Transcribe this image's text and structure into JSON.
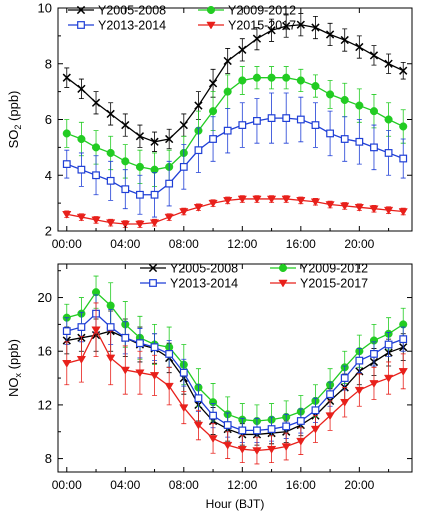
{
  "chart_data": [
    {
      "type": "line",
      "ylabel": "SO2 (ppb)",
      "ylabel_main": "SO",
      "ylabel_sub": "2",
      "ylabel_unit": " (ppb)",
      "xlabel": "",
      "ylim": [
        2,
        10
      ],
      "yticks": [
        2,
        4,
        6,
        8,
        10
      ],
      "xlim": [
        -0.6,
        23.6
      ],
      "xticks": [
        0,
        4,
        8,
        12,
        16,
        20
      ],
      "xtick_labels": [
        "00:00",
        "04:00",
        "08:00",
        "12:00",
        "16:00",
        "20:00"
      ],
      "legend_position": "top-left",
      "x": [
        0,
        1,
        2,
        3,
        4,
        5,
        6,
        7,
        8,
        9,
        10,
        11,
        12,
        13,
        14,
        15,
        16,
        17,
        18,
        19,
        20,
        21,
        22,
        23
      ],
      "series": [
        {
          "name": "Y2005-2008",
          "color": "#000000",
          "marker": "x",
          "values": [
            7.5,
            7.1,
            6.6,
            6.2,
            5.8,
            5.4,
            5.2,
            5.3,
            5.8,
            6.5,
            7.3,
            8.1,
            8.5,
            8.9,
            9.2,
            9.35,
            9.4,
            9.3,
            9.05,
            8.85,
            8.6,
            8.3,
            8.0,
            7.75
          ],
          "err": [
            0.35,
            0.35,
            0.4,
            0.4,
            0.4,
            0.4,
            0.35,
            0.35,
            0.4,
            0.5,
            0.5,
            0.45,
            0.4,
            0.4,
            0.4,
            0.4,
            0.4,
            0.4,
            0.4,
            0.4,
            0.4,
            0.35,
            0.35,
            0.3
          ]
        },
        {
          "name": "Y2009-2012",
          "color": "#22cc22",
          "marker": "circle",
          "values": [
            5.5,
            5.3,
            5.0,
            4.8,
            4.5,
            4.3,
            4.2,
            4.3,
            4.8,
            5.6,
            6.3,
            7.0,
            7.4,
            7.5,
            7.5,
            7.5,
            7.4,
            7.2,
            6.9,
            6.7,
            6.5,
            6.3,
            6.0,
            5.75
          ],
          "err": [
            0.5,
            0.6,
            0.6,
            0.6,
            0.6,
            0.6,
            0.6,
            0.6,
            0.6,
            0.7,
            0.7,
            0.6,
            0.5,
            0.4,
            0.4,
            0.4,
            0.4,
            0.4,
            0.5,
            0.6,
            0.6,
            0.6,
            0.6,
            0.6
          ]
        },
        {
          "name": "Y2013-2014",
          "color": "#1f3fd6",
          "marker": "square",
          "values": [
            4.4,
            4.2,
            4.0,
            3.8,
            3.5,
            3.3,
            3.3,
            3.7,
            4.3,
            4.9,
            5.3,
            5.6,
            5.8,
            5.95,
            6.05,
            6.05,
            6.0,
            5.8,
            5.5,
            5.3,
            5.2,
            5.0,
            4.8,
            4.6
          ],
          "err": [
            0.5,
            0.6,
            0.7,
            0.7,
            0.7,
            0.7,
            0.8,
            0.8,
            0.8,
            0.8,
            0.8,
            0.8,
            0.8,
            0.8,
            0.9,
            0.9,
            0.8,
            0.8,
            0.8,
            0.8,
            0.8,
            0.8,
            0.8,
            0.7
          ]
        },
        {
          "name": "Y2015-2017",
          "color": "#e8201b",
          "marker": "triangle-down",
          "values": [
            2.6,
            2.5,
            2.4,
            2.3,
            2.25,
            2.25,
            2.3,
            2.5,
            2.7,
            2.85,
            3.0,
            3.1,
            3.15,
            3.15,
            3.15,
            3.15,
            3.1,
            3.05,
            2.95,
            2.9,
            2.85,
            2.8,
            2.75,
            2.7
          ],
          "err": [
            0.12,
            0.12,
            0.12,
            0.12,
            0.12,
            0.12,
            0.12,
            0.12,
            0.12,
            0.12,
            0.12,
            0.12,
            0.12,
            0.12,
            0.12,
            0.12,
            0.12,
            0.12,
            0.12,
            0.12,
            0.12,
            0.12,
            0.12,
            0.12
          ]
        }
      ]
    },
    {
      "type": "line",
      "ylabel": "NOx (ppb)",
      "ylabel_main": "NO",
      "ylabel_sub": "x",
      "ylabel_unit": " (ppb)",
      "xlabel": "Hour (BJT)",
      "ylim": [
        7,
        22.5
      ],
      "yticks": [
        8,
        12,
        16,
        20
      ],
      "xlim": [
        -0.6,
        23.6
      ],
      "xticks": [
        0,
        4,
        8,
        12,
        16,
        20
      ],
      "xtick_labels": [
        "00:00",
        "04:00",
        "08:00",
        "12:00",
        "16:00",
        "20:00"
      ],
      "legend_position": "top-right",
      "x": [
        0,
        1,
        2,
        3,
        4,
        5,
        6,
        7,
        8,
        9,
        10,
        11,
        12,
        13,
        14,
        15,
        16,
        17,
        18,
        19,
        20,
        21,
        22,
        23
      ],
      "series": [
        {
          "name": "Y2005-2008",
          "color": "#000000",
          "marker": "x",
          "values": [
            16.8,
            17.0,
            17.2,
            17.5,
            17.0,
            16.5,
            16.2,
            15.5,
            14.0,
            12.0,
            10.8,
            10.2,
            9.8,
            9.8,
            9.9,
            10.0,
            10.5,
            11.2,
            12.3,
            13.3,
            14.5,
            15.2,
            15.9,
            16.3
          ],
          "err": [
            1.0,
            1.0,
            1.2,
            1.5,
            1.4,
            1.3,
            1.1,
            1.1,
            1.2,
            1.2,
            1.0,
            0.9,
            0.8,
            0.8,
            0.8,
            0.8,
            0.8,
            0.9,
            0.9,
            1.0,
            1.0,
            1.0,
            1.0,
            1.0
          ]
        },
        {
          "name": "Y2009-2012",
          "color": "#22cc22",
          "marker": "circle",
          "values": [
            18.5,
            18.8,
            20.4,
            19.4,
            18.0,
            17.0,
            16.5,
            16.3,
            15.0,
            13.3,
            12.2,
            11.3,
            10.9,
            10.8,
            10.9,
            11.1,
            11.5,
            12.3,
            13.5,
            14.8,
            16.0,
            16.8,
            17.3,
            18.0
          ],
          "err": [
            1.0,
            1.2,
            1.2,
            1.7,
            1.7,
            1.6,
            1.5,
            1.5,
            1.5,
            1.4,
            1.4,
            1.3,
            1.2,
            1.2,
            1.2,
            1.2,
            1.2,
            1.2,
            1.2,
            1.2,
            1.2,
            1.2,
            1.2,
            1.2
          ]
        },
        {
          "name": "Y2013-2014",
          "color": "#1f3fd6",
          "marker": "square",
          "values": [
            17.5,
            17.8,
            18.8,
            17.8,
            17.0,
            16.6,
            16.3,
            15.8,
            14.4,
            12.5,
            11.2,
            10.5,
            10.1,
            10.1,
            10.2,
            10.4,
            10.8,
            11.6,
            12.8,
            14.0,
            15.3,
            15.8,
            16.5,
            16.9
          ],
          "err": [
            1.0,
            1.1,
            1.4,
            1.3,
            1.2,
            1.1,
            1.0,
            1.0,
            1.0,
            1.0,
            0.9,
            0.9,
            0.9,
            0.9,
            0.9,
            0.9,
            0.9,
            0.9,
            0.9,
            0.9,
            0.9,
            0.9,
            0.9,
            0.9
          ]
        },
        {
          "name": "Y2015-2017",
          "color": "#e8201b",
          "marker": "triangle-down",
          "values": [
            15.1,
            15.4,
            17.6,
            15.5,
            14.6,
            14.4,
            14.2,
            13.4,
            11.8,
            10.5,
            9.5,
            9.0,
            8.7,
            8.6,
            8.7,
            8.9,
            9.3,
            10.2,
            11.2,
            12.2,
            13.1,
            13.6,
            14.0,
            14.5
          ],
          "err": [
            1.6,
            1.7,
            2.0,
            2.0,
            1.8,
            1.6,
            1.5,
            1.4,
            1.2,
            1.1,
            1.1,
            1.0,
            1.0,
            1.0,
            1.0,
            1.0,
            1.0,
            1.0,
            1.1,
            1.1,
            1.2,
            1.2,
            1.2,
            1.3
          ]
        }
      ]
    }
  ]
}
